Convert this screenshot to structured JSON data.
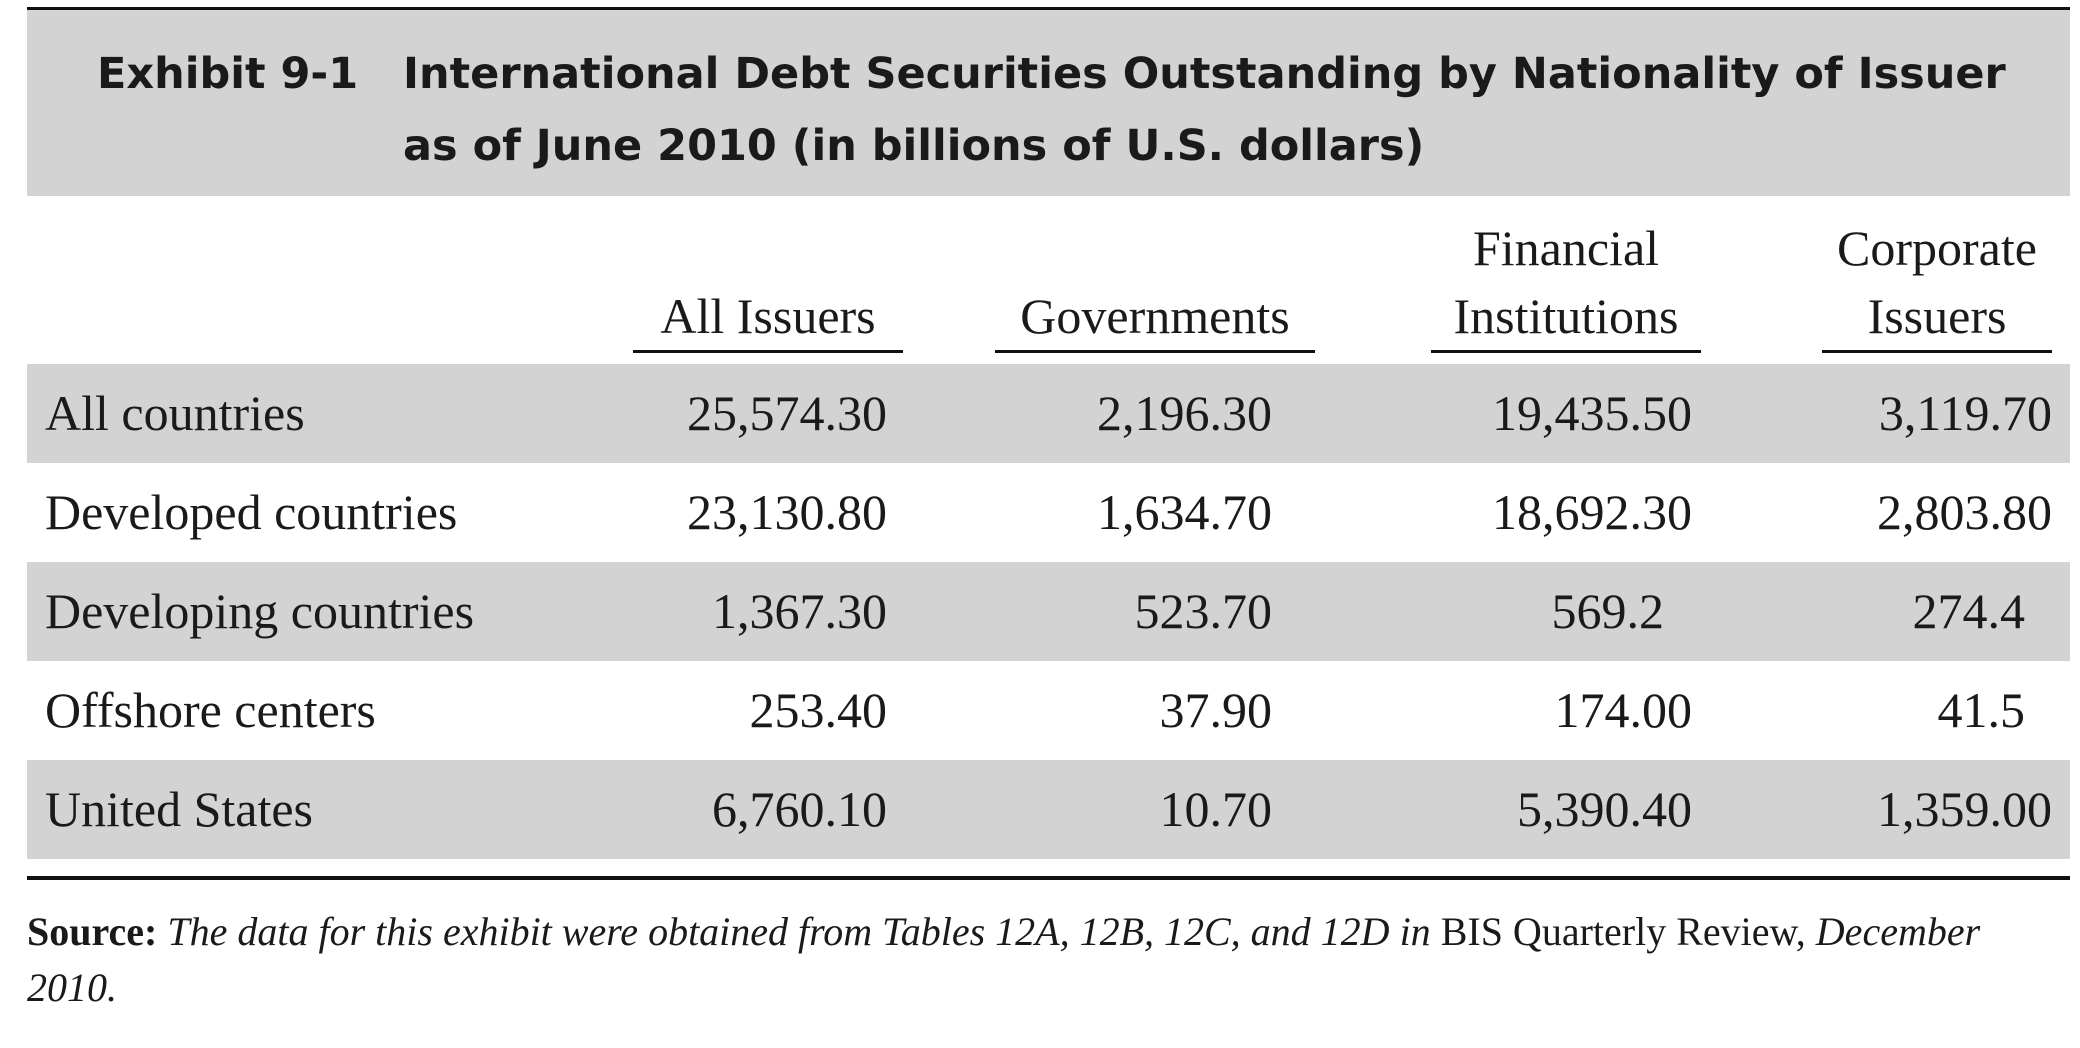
{
  "exhibit": {
    "number": "Exhibit 9-1",
    "title": "International Debt Securities Outstanding by Nationality of Issuer as of June 2010 (in billions of U.S. dollars)"
  },
  "columns": [
    {
      "label": "All Issuers"
    },
    {
      "label": "Governments"
    },
    {
      "label": "Financial Institutions"
    },
    {
      "label": "Corporate Issuers"
    }
  ],
  "rows": [
    {
      "label": "All countries",
      "values": [
        "25,574.30",
        "2,196.30",
        "19,435.50",
        "3,119.70"
      ]
    },
    {
      "label": "Developed countries",
      "values": [
        "23,130.80",
        "1,634.70",
        "18,692.30",
        "2,803.80"
      ]
    },
    {
      "label": "Developing countries",
      "values": [
        "1,367.30",
        "523.70",
        "569.2",
        "274.4"
      ]
    },
    {
      "label": "Offshore centers",
      "values": [
        "253.40",
        "37.90",
        "174.00",
        "41.5"
      ]
    },
    {
      "label": "United States",
      "values": [
        "6,760.10",
        "10.70",
        "5,390.40",
        "1,359.00"
      ]
    }
  ],
  "source": {
    "label": "Source:",
    "text_italic_1": "The data for this exhibit were obtained from Tables 12A, 12B, 12C, and 12D in",
    "text_roman": "BIS Quarterly Review,",
    "text_italic_2": "December 2010."
  },
  "colors": {
    "band": "#d3d3d3",
    "rule": "#111111",
    "text": "#1a1a1a"
  }
}
